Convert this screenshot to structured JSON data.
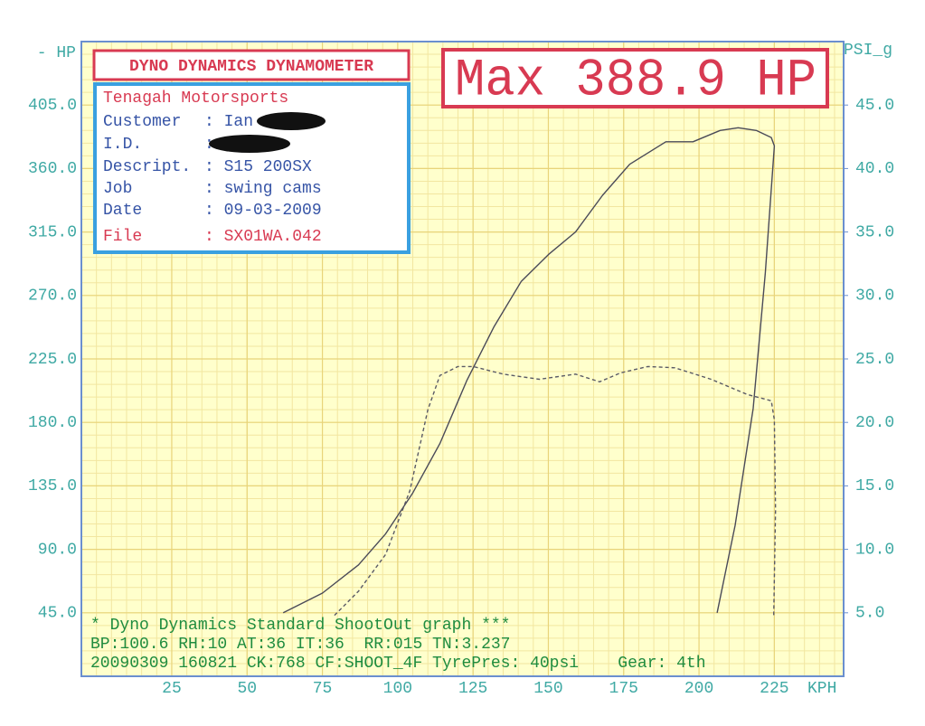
{
  "chart_data": {
    "type": "line",
    "title": "DYNO DYNAMICS DYNAMOMETER",
    "headline": "Max 388.9 HP",
    "info": {
      "heading": "Tenagah Motorsports",
      "rows": [
        {
          "label": "Customer",
          "value": ": Ian"
        },
        {
          "label": "I.D.",
          "value": ":"
        },
        {
          "label": "Descript.",
          "value": ": S15 200SX"
        },
        {
          "label": "Job",
          "value": ": swing cams"
        },
        {
          "label": "Date",
          "value": ": 09-03-2009"
        },
        {
          "label": "File",
          "value": ": SX01WA.042"
        }
      ]
    },
    "footer": [
      "* Dyno Dynamics Standard ShootOut graph ***",
      "BP:100.6 RH:10 AT:36 IT:36  RR:015 TN:3.237",
      "20090309 160821 CK:768 CF:SHOOT_4F TyrePres: 40psi    Gear: 4th"
    ],
    "y_label": "- HP",
    "y2_label": "PSI_g",
    "x_label": "KPH",
    "xlim": [
      -5,
      248
    ],
    "ylim": [
      0,
      450
    ],
    "y2lim": [
      0,
      50
    ],
    "xticks": [
      25,
      50,
      75,
      100,
      125,
      150,
      175,
      200,
      225
    ],
    "yticks": [
      {
        "value": 45,
        "label": "45.0"
      },
      {
        "value": 90,
        "label": "90.0"
      },
      {
        "value": 135,
        "label": "135.0"
      },
      {
        "value": 180,
        "label": "180.0"
      },
      {
        "value": 225,
        "label": "225.0"
      },
      {
        "value": 270,
        "label": "270.0"
      },
      {
        "value": 315,
        "label": "315.0"
      },
      {
        "value": 360,
        "label": "360.0"
      },
      {
        "value": 405,
        "label": "405.0"
      }
    ],
    "y2ticks": [
      {
        "value": 5,
        "label": "5.0"
      },
      {
        "value": 10,
        "label": "10.0"
      },
      {
        "value": 15,
        "label": "15.0"
      },
      {
        "value": 20,
        "label": "20.0"
      },
      {
        "value": 25,
        "label": "25.0"
      },
      {
        "value": 30,
        "label": "30.0"
      },
      {
        "value": 35,
        "label": "35.0"
      },
      {
        "value": 40,
        "label": "40.0"
      },
      {
        "value": 45,
        "label": "45.0"
      }
    ],
    "grid": true,
    "series": [
      {
        "color": "#4a4a58",
        "dash": false,
        "x": [
          62,
          75,
          87,
          96,
          105,
          114,
          123,
          132,
          141,
          150,
          159,
          168,
          177,
          189,
          198,
          207,
          213,
          219,
          224,
          225,
          222,
          218,
          212,
          206
        ],
        "values": [
          45,
          59,
          79,
          101,
          130,
          165,
          210,
          248,
          280,
          299,
          315,
          341,
          363,
          379,
          379,
          387,
          388.9,
          387,
          382,
          376,
          286,
          190,
          107,
          45
        ]
      },
      {
        "axis": "y2",
        "color": "#5a5a66",
        "dash": true,
        "x": [
          79,
          87,
          96,
          104,
          110,
          114,
          120,
          125,
          135,
          147,
          159,
          167,
          174,
          183,
          192,
          204,
          216,
          224,
          225,
          225.4,
          224.8
        ],
        "values": [
          4.8,
          6.7,
          9.6,
          14.6,
          21,
          23.7,
          24.4,
          24.4,
          23.8,
          23.4,
          23.8,
          23.2,
          23.9,
          24.4,
          24.3,
          23.4,
          22.2,
          21.7,
          20.2,
          13.1,
          4.8
        ]
      }
    ]
  }
}
